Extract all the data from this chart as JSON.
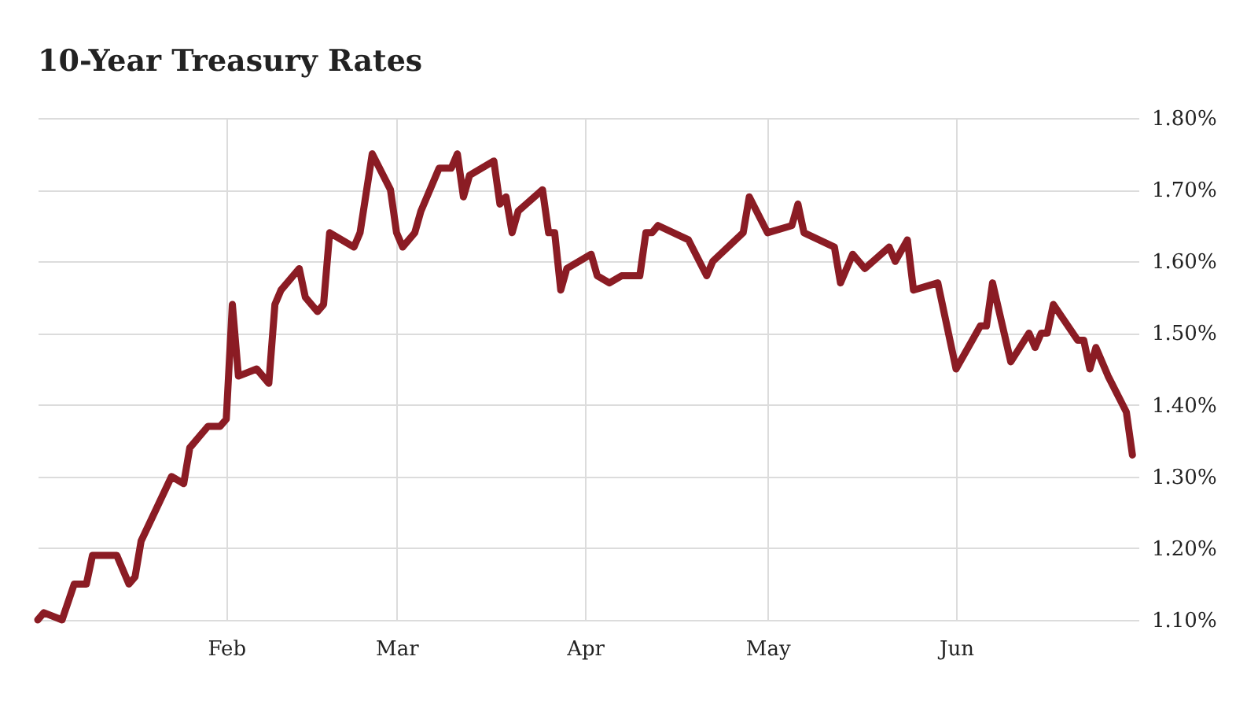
{
  "chart_data": {
    "type": "line",
    "title": "10-Year Treasury Rates",
    "x": [
      "--01-01",
      "--01-02",
      "--01-05",
      "--01-07",
      "--01-09",
      "--01-10",
      "--01-14",
      "--01-16",
      "--01-17",
      "--01-18",
      "--01-23",
      "--01-25",
      "--01-26",
      "--01-29",
      "--01-31",
      "--02-01",
      "--02-02",
      "--02-03",
      "--02-06",
      "--02-08",
      "--02-09",
      "--02-10",
      "--02-13",
      "--02-14",
      "--02-16",
      "--02-17",
      "--02-18",
      "--02-22",
      "--02-23",
      "--02-25",
      "--02-28",
      "--03-01",
      "--03-02",
      "--03-04",
      "--03-05",
      "--03-08",
      "--03-10",
      "--03-11",
      "--03-12",
      "--03-13",
      "--03-17",
      "--03-18",
      "--03-19",
      "--03-20",
      "--03-21",
      "--03-25",
      "--03-26",
      "--03-27",
      "--03-28",
      "--03-29",
      "--04-02",
      "--04-03",
      "--04-05",
      "--04-07",
      "--04-10",
      "--04-11",
      "--04-12",
      "--04-13",
      "--04-18",
      "--04-21",
      "--04-22",
      "--04-27",
      "--04-28",
      "--05-01",
      "--05-05",
      "--05-06",
      "--05-07",
      "--05-12",
      "--05-13",
      "--05-15",
      "--05-17",
      "--05-21",
      "--05-22",
      "--05-24",
      "--05-25",
      "--05-29",
      "--06-01",
      "--06-05",
      "--06-06",
      "--06-07",
      "--06-10",
      "--06-13",
      "--06-14",
      "--06-15",
      "--06-16",
      "--06-17",
      "--06-21",
      "--06-22",
      "--06-23",
      "--06-24",
      "--06-26",
      "--06-29",
      "--06-30"
    ],
    "series": [
      {
        "color": "#8b1c24",
        "values": [
          1.1,
          1.11,
          1.1,
          1.15,
          1.15,
          1.19,
          1.19,
          1.15,
          1.16,
          1.21,
          1.3,
          1.29,
          1.34,
          1.37,
          1.37,
          1.38,
          1.54,
          1.44,
          1.45,
          1.43,
          1.54,
          1.56,
          1.59,
          1.55,
          1.53,
          1.54,
          1.64,
          1.62,
          1.64,
          1.75,
          1.7,
          1.64,
          1.62,
          1.64,
          1.67,
          1.73,
          1.73,
          1.75,
          1.69,
          1.72,
          1.74,
          1.68,
          1.69,
          1.64,
          1.67,
          1.7,
          1.64,
          1.64,
          1.56,
          1.59,
          1.61,
          1.58,
          1.57,
          1.58,
          1.58,
          1.64,
          1.64,
          1.65,
          1.63,
          1.58,
          1.6,
          1.64,
          1.69,
          1.64,
          1.65,
          1.68,
          1.64,
          1.62,
          1.57,
          1.61,
          1.59,
          1.62,
          1.6,
          1.63,
          1.56,
          1.57,
          1.45,
          1.51,
          1.51,
          1.57,
          1.46,
          1.5,
          1.48,
          1.5,
          1.5,
          1.54,
          1.49,
          1.49,
          1.45,
          1.48,
          1.44,
          1.39,
          1.33
        ]
      }
    ],
    "xlim": [
      "--01-01",
      "--07-01"
    ],
    "xticks": [
      {
        "value": "--02-01",
        "label": "Feb"
      },
      {
        "value": "--03-01",
        "label": "Mar"
      },
      {
        "value": "--04-01",
        "label": "Apr"
      },
      {
        "value": "--05-01",
        "label": "May"
      },
      {
        "value": "--06-01",
        "label": "Jun"
      }
    ],
    "ylim": [
      1.1,
      1.8
    ],
    "yticks": [
      {
        "value": 1.1,
        "label": "1.10%"
      },
      {
        "value": 1.2,
        "label": "1.20%"
      },
      {
        "value": 1.3,
        "label": "1.30%"
      },
      {
        "value": 1.4,
        "label": "1.40%"
      },
      {
        "value": 1.5,
        "label": "1.50%"
      },
      {
        "value": 1.6,
        "label": "1.60%"
      },
      {
        "value": 1.7,
        "label": "1.70%"
      },
      {
        "value": 1.8,
        "label": "1.80%"
      }
    ],
    "grid": true,
    "marker": "none",
    "line_style": "solid"
  }
}
